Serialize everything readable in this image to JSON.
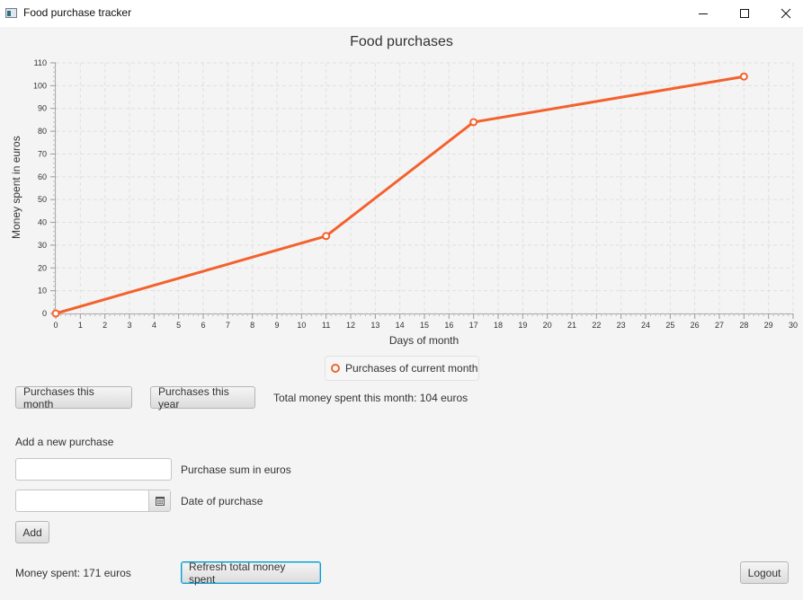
{
  "window": {
    "title": "Food purchase tracker"
  },
  "chart_data": {
    "type": "line",
    "title": "Food purchases",
    "xlabel": "Days of month",
    "ylabel": "Money spent in euros",
    "xlim": [
      0,
      30
    ],
    "ylim": [
      0,
      110
    ],
    "x_ticks": [
      0,
      1,
      2,
      3,
      4,
      5,
      6,
      7,
      8,
      9,
      10,
      11,
      12,
      13,
      14,
      15,
      16,
      17,
      18,
      19,
      20,
      21,
      22,
      23,
      24,
      25,
      26,
      27,
      28,
      29,
      30
    ],
    "y_ticks": [
      0,
      10,
      20,
      30,
      40,
      50,
      60,
      70,
      80,
      90,
      100,
      110
    ],
    "grid": true,
    "legend_position": "bottom",
    "series": [
      {
        "name": "Purchases of current month",
        "color": "#f3622d",
        "x": [
          0,
          11,
          17,
          28
        ],
        "y": [
          0,
          34,
          84,
          104
        ]
      }
    ]
  },
  "controls": {
    "month_button": "Purchases this month",
    "year_button": "Purchases this year",
    "total_month_text": "Total money spent this month: 104 euros",
    "add_heading": "Add a new purchase",
    "sum_label": "Purchase sum in euros",
    "sum_value": "",
    "date_label": "Date of purchase",
    "date_value": "",
    "add_button": "Add",
    "money_spent_text": "Money spent: 171 euros",
    "refresh_button": "Refresh total money spent",
    "logout_button": "Logout"
  },
  "icons": {
    "app": "app-icon",
    "minimize": "minimize-icon",
    "maximize": "maximize-icon",
    "close": "close-icon",
    "calendar": "calendar-icon"
  }
}
